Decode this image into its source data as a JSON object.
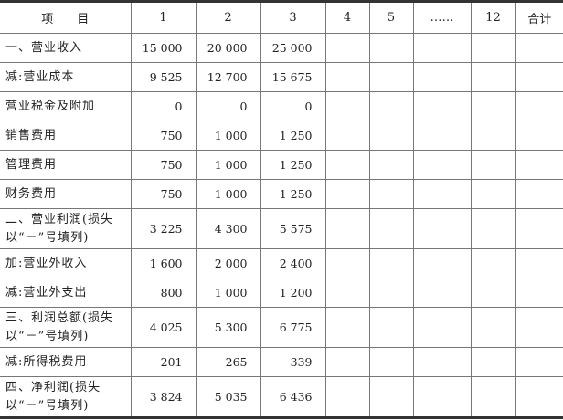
{
  "table": {
    "headers": [
      "项　　目",
      "1",
      "2",
      "3",
      "4",
      "5",
      "……",
      "12",
      "合计"
    ],
    "rows": [
      {
        "label": "一、营业收入",
        "values": [
          "15 000",
          "20 000",
          "25 000",
          "",
          "",
          "",
          "",
          ""
        ]
      },
      {
        "label": "减:营业成本",
        "values": [
          "9 525",
          "12 700",
          "15 675",
          "",
          "",
          "",
          "",
          ""
        ]
      },
      {
        "label": "营业税金及附加",
        "values": [
          "0",
          "0",
          "0",
          "",
          "",
          "",
          "",
          ""
        ]
      },
      {
        "label": "销售费用",
        "values": [
          "750",
          "1 000",
          "1 250",
          "",
          "",
          "",
          "",
          ""
        ]
      },
      {
        "label": "管理费用",
        "values": [
          "750",
          "1 000",
          "1 250",
          "",
          "",
          "",
          "",
          ""
        ]
      },
      {
        "label": "财务费用",
        "values": [
          "750",
          "1 000",
          "1 250",
          "",
          "",
          "",
          "",
          ""
        ]
      },
      {
        "label": "二、营业利润(损失以“－”号填列)",
        "values": [
          "3 225",
          "4 300",
          "5 575",
          "",
          "",
          "",
          "",
          ""
        ]
      },
      {
        "label": "加:营业外收入",
        "values": [
          "1 600",
          "2 000",
          "2 400",
          "",
          "",
          "",
          "",
          ""
        ]
      },
      {
        "label": "减:营业外支出",
        "values": [
          "800",
          "1 000",
          "1 200",
          "",
          "",
          "",
          "",
          ""
        ]
      },
      {
        "label": "三、利润总额(损失以“－”号填列)",
        "values": [
          "4 025",
          "5 300",
          "6 775",
          "",
          "",
          "",
          "",
          ""
        ]
      },
      {
        "label": "减:所得税费用",
        "values": [
          "201",
          "265",
          "339",
          "",
          "",
          "",
          "",
          ""
        ]
      },
      {
        "label": "四、净利润(损失以“－”号填列)",
        "values": [
          "3 824",
          "5 035",
          "6 436",
          "",
          "",
          "",
          "",
          ""
        ]
      }
    ]
  }
}
